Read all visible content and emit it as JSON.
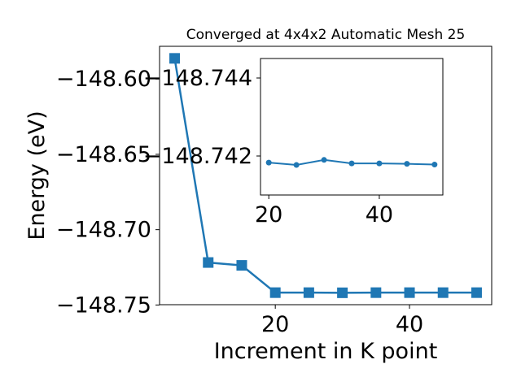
{
  "chart_data": [
    {
      "type": "line",
      "title": "Converged at 4x4x2 Automatic Mesh 25",
      "xlabel": "Increment in K point",
      "ylabel": "Energy (eV)",
      "x": [
        5,
        10,
        15,
        20,
        25,
        30,
        35,
        40,
        45,
        50
      ],
      "series": [
        {
          "values": [
            -148.5863,
            -148.7218,
            -148.7237,
            -148.7418,
            -148.7418,
            -148.7419,
            -148.7418,
            -148.7418,
            -148.7418,
            -148.7418
          ],
          "color": "#1f77b4",
          "marker": "square"
        }
      ],
      "xlim": [
        2.75,
        52.25
      ],
      "ylim": [
        -148.7498,
        -148.5783
      ],
      "xticks": [
        20,
        40
      ],
      "xtick_labels": [
        "20",
        "40"
      ],
      "yticks": [
        -148.6,
        -148.65,
        -148.7,
        -148.75
      ],
      "ytick_labels": [
        "−148.60",
        "−148.65",
        "−148.70",
        "−148.75"
      ],
      "grid": false,
      "legend": "none"
    },
    {
      "type": "line",
      "x": [
        20,
        25,
        30,
        35,
        40,
        45,
        50
      ],
      "series": [
        {
          "values": [
            -148.74183,
            -148.74177,
            -148.7419,
            -148.74181,
            -148.74181,
            -148.7418,
            -148.74178
          ],
          "color": "#1f77b4",
          "marker": "circle"
        }
      ],
      "xlim": [
        18.5,
        51.5
      ],
      "ylim": [
        -148.741,
        -148.7445
      ],
      "yaxis_inverted": true,
      "xticks": [
        20,
        40
      ],
      "xtick_labels": [
        "20",
        "40"
      ],
      "yticks": [
        -148.744,
        -148.742
      ],
      "ytick_labels": [
        "−148.744",
        "−148.742"
      ],
      "grid": false,
      "legend": "none"
    }
  ]
}
